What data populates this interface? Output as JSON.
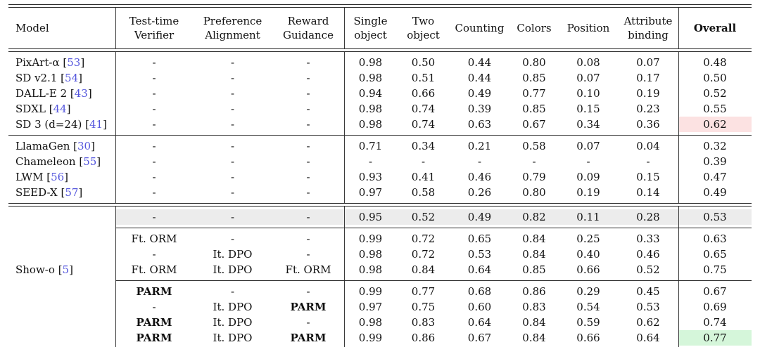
{
  "colors": {
    "highlight_pink": "#fce2e2",
    "highlight_green": "#d5f6da",
    "row_gray": "#ececec",
    "citation_blue": "#5456dd",
    "rule_color": "#2b2b2b"
  },
  "table": {
    "bold_values": [
      "PARM"
    ],
    "headers": [
      {
        "lines": [
          "Model"
        ],
        "bold": false
      },
      {
        "lines": [
          "Test-time",
          "Verifier"
        ],
        "bold": false
      },
      {
        "lines": [
          "Preference",
          "Alignment"
        ],
        "bold": false
      },
      {
        "lines": [
          "Reward",
          "Guidance"
        ],
        "bold": false
      },
      {
        "lines": [
          "Single",
          "object"
        ],
        "bold": false
      },
      {
        "lines": [
          "Two",
          "object"
        ],
        "bold": false
      },
      {
        "lines": [
          "Counting"
        ],
        "bold": false
      },
      {
        "lines": [
          "Colors"
        ],
        "bold": false
      },
      {
        "lines": [
          "Position"
        ],
        "bold": false
      },
      {
        "lines": [
          "Attribute",
          "binding"
        ],
        "bold": false
      },
      {
        "lines": [
          "Overall"
        ],
        "bold": true
      }
    ],
    "sections": {
      "diffusion": [
        {
          "model": "PixArt-α",
          "cite": "53",
          "cells": [
            "-",
            "-",
            "-",
            "0.98",
            "0.50",
            "0.44",
            "0.80",
            "0.08",
            "0.07",
            "0.48"
          ]
        },
        {
          "model": "SD v2.1",
          "cite": "54",
          "cells": [
            "-",
            "-",
            "-",
            "0.98",
            "0.51",
            "0.44",
            "0.85",
            "0.07",
            "0.17",
            "0.50"
          ]
        },
        {
          "model": "DALL-E 2",
          "cite": "43",
          "cells": [
            "-",
            "-",
            "-",
            "0.94",
            "0.66",
            "0.49",
            "0.77",
            "0.10",
            "0.19",
            "0.52"
          ]
        },
        {
          "model": "SDXL",
          "cite": "44",
          "cells": [
            "-",
            "-",
            "-",
            "0.98",
            "0.74",
            "0.39",
            "0.85",
            "0.15",
            "0.23",
            "0.55"
          ]
        },
        {
          "model": "SD 3 (d=24)",
          "cite": "41",
          "cells": [
            "-",
            "-",
            "-",
            "0.98",
            "0.74",
            "0.63",
            "0.67",
            "0.34",
            "0.36",
            "0.62"
          ],
          "hl": "pink"
        }
      ],
      "autoregressive": [
        {
          "model": "LlamaGen",
          "cite": "30",
          "cells": [
            "-",
            "-",
            "-",
            "0.71",
            "0.34",
            "0.21",
            "0.58",
            "0.07",
            "0.04",
            "0.32"
          ]
        },
        {
          "model": "Chameleon",
          "cite": "55",
          "cells": [
            "-",
            "-",
            "-",
            "-",
            "-",
            "-",
            "-",
            "-",
            "-",
            "0.39"
          ]
        },
        {
          "model": "LWM",
          "cite": "56",
          "cells": [
            "-",
            "-",
            "-",
            "0.93",
            "0.41",
            "0.46",
            "0.79",
            "0.09",
            "0.15",
            "0.47"
          ]
        },
        {
          "model": "SEED-X",
          "cite": "57",
          "cells": [
            "-",
            "-",
            "-",
            "0.97",
            "0.58",
            "0.26",
            "0.80",
            "0.19",
            "0.14",
            "0.49"
          ]
        }
      ],
      "showo_base": [
        {
          "model": "",
          "cells": [
            "-",
            "-",
            "-",
            "0.95",
            "0.52",
            "0.49",
            "0.82",
            "0.11",
            "0.28",
            "0.53"
          ],
          "gray": true
        }
      ],
      "showo_orm": [
        {
          "model": "",
          "cells": [
            "Ft. ORM",
            "-",
            "-",
            "0.99",
            "0.72",
            "0.65",
            "0.84",
            "0.25",
            "0.33",
            "0.63"
          ]
        },
        {
          "model": "",
          "cells": [
            "-",
            "It. DPO",
            "-",
            "0.98",
            "0.72",
            "0.53",
            "0.84",
            "0.40",
            "0.46",
            "0.65"
          ]
        },
        {
          "model": "Show-o",
          "cite": "5",
          "cells": [
            "Ft. ORM",
            "It. DPO",
            "Ft. ORM",
            "0.98",
            "0.84",
            "0.64",
            "0.85",
            "0.66",
            "0.52",
            "0.75"
          ]
        }
      ],
      "showo_parm": [
        {
          "model": "",
          "cells": [
            "PARM",
            "-",
            "-",
            "0.99",
            "0.77",
            "0.68",
            "0.86",
            "0.29",
            "0.45",
            "0.67"
          ]
        },
        {
          "model": "",
          "cells": [
            "-",
            "It. DPO",
            "PARM",
            "0.97",
            "0.75",
            "0.60",
            "0.83",
            "0.54",
            "0.53",
            "0.69"
          ]
        },
        {
          "model": "",
          "cells": [
            "PARM",
            "It. DPO",
            "-",
            "0.98",
            "0.83",
            "0.64",
            "0.84",
            "0.59",
            "0.62",
            "0.74"
          ]
        },
        {
          "model": "",
          "cells": [
            "PARM",
            "It. DPO",
            "PARM",
            "0.99",
            "0.86",
            "0.67",
            "0.84",
            "0.66",
            "0.64",
            "0.77"
          ],
          "hl": "green"
        }
      ]
    }
  }
}
